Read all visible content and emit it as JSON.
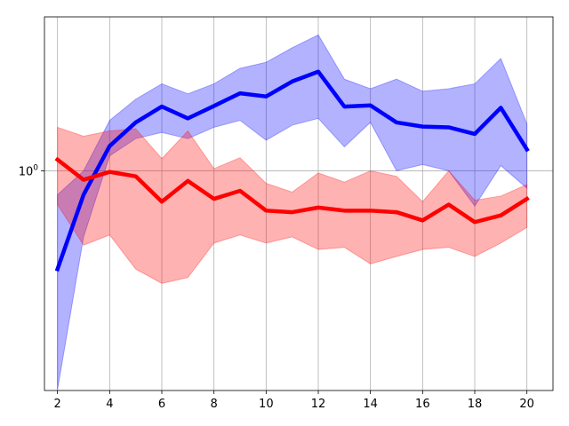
{
  "chart_data": {
    "type": "line",
    "title": "",
    "xlabel": "",
    "ylabel": "",
    "yscale": "log",
    "grid": true,
    "legend": "none",
    "xlim": [
      1.5,
      21
    ],
    "ylim": [
      0.129,
      4.2
    ],
    "x_ticks": [
      {
        "value": 2,
        "label": "2"
      },
      {
        "value": 4,
        "label": "4"
      },
      {
        "value": 6,
        "label": "6"
      },
      {
        "value": 8,
        "label": "8"
      },
      {
        "value": 10,
        "label": "10"
      },
      {
        "value": 12,
        "label": "12"
      },
      {
        "value": 14,
        "label": "14"
      },
      {
        "value": 16,
        "label": "16"
      },
      {
        "value": 18,
        "label": "18"
      },
      {
        "value": 20,
        "label": "20"
      }
    ],
    "y_ticks": [
      {
        "value": 1,
        "label": "10",
        "superscript": "0"
      }
    ],
    "x": [
      2,
      3,
      4,
      5,
      6,
      7,
      8,
      9,
      10,
      11,
      12,
      13,
      14,
      15,
      16,
      17,
      18,
      19,
      20
    ],
    "series": [
      {
        "color": "#0000ff",
        "band_color": "#0000ff",
        "values": [
          0.4,
          0.8,
          1.26,
          1.57,
          1.82,
          1.63,
          1.83,
          2.06,
          2.0,
          2.3,
          2.52,
          1.82,
          1.84,
          1.57,
          1.51,
          1.5,
          1.41,
          1.8,
          1.22
        ],
        "upper": [
          0.8,
          1.0,
          1.6,
          1.95,
          2.25,
          2.05,
          2.25,
          2.6,
          2.75,
          3.15,
          3.55,
          2.35,
          2.15,
          2.35,
          2.1,
          2.15,
          2.25,
          2.85,
          1.55
        ],
        "lower": [
          0.13,
          0.54,
          1.15,
          1.35,
          1.43,
          1.35,
          1.5,
          1.6,
          1.33,
          1.53,
          1.63,
          1.25,
          1.57,
          1.0,
          1.06,
          1.0,
          0.72,
          1.05,
          0.85
        ]
      },
      {
        "color": "#ff0000",
        "band_color": "#ff0000",
        "values": [
          1.11,
          0.92,
          0.99,
          0.95,
          0.75,
          0.91,
          0.77,
          0.83,
          0.69,
          0.68,
          0.71,
          0.69,
          0.69,
          0.68,
          0.63,
          0.73,
          0.62,
          0.66,
          0.77
        ],
        "upper": [
          1.5,
          1.38,
          1.45,
          1.48,
          1.12,
          1.45,
          1.02,
          1.13,
          0.89,
          0.82,
          0.98,
          0.9,
          1.0,
          0.95,
          0.75,
          1.0,
          0.76,
          0.79,
          0.88
        ],
        "lower": [
          0.73,
          0.5,
          0.55,
          0.4,
          0.35,
          0.37,
          0.51,
          0.55,
          0.51,
          0.54,
          0.48,
          0.49,
          0.42,
          0.45,
          0.48,
          0.49,
          0.45,
          0.51,
          0.59
        ]
      }
    ]
  }
}
